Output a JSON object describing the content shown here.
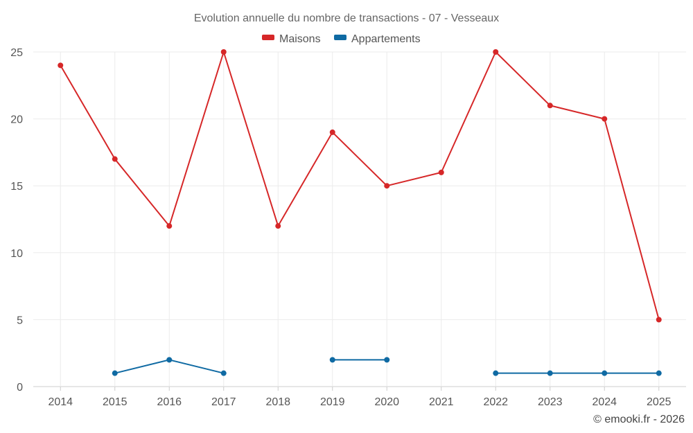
{
  "chart_data": {
    "type": "line",
    "title": "Evolution annuelle du nombre de transactions - 07 - Vesseaux",
    "categories": [
      "2014",
      "2015",
      "2016",
      "2017",
      "2018",
      "2019",
      "2020",
      "2021",
      "2022",
      "2023",
      "2024",
      "2025"
    ],
    "series": [
      {
        "name": "Maisons",
        "color": "#d62728",
        "values": [
          24,
          17,
          12,
          25,
          12,
          19,
          15,
          16,
          25,
          21,
          20,
          5
        ]
      },
      {
        "name": "Appartements",
        "color": "#0f6aa3",
        "values": [
          null,
          1,
          2,
          1,
          null,
          2,
          2,
          null,
          1,
          1,
          1,
          1
        ]
      }
    ],
    "ylim": [
      0,
      25
    ],
    "yticks": [
      "0",
      "5",
      "10",
      "15",
      "20",
      "25"
    ],
    "xlabel": "",
    "ylabel": "",
    "grid": true,
    "legend": "top-center"
  },
  "credit": "© emooki.fr - 2026"
}
